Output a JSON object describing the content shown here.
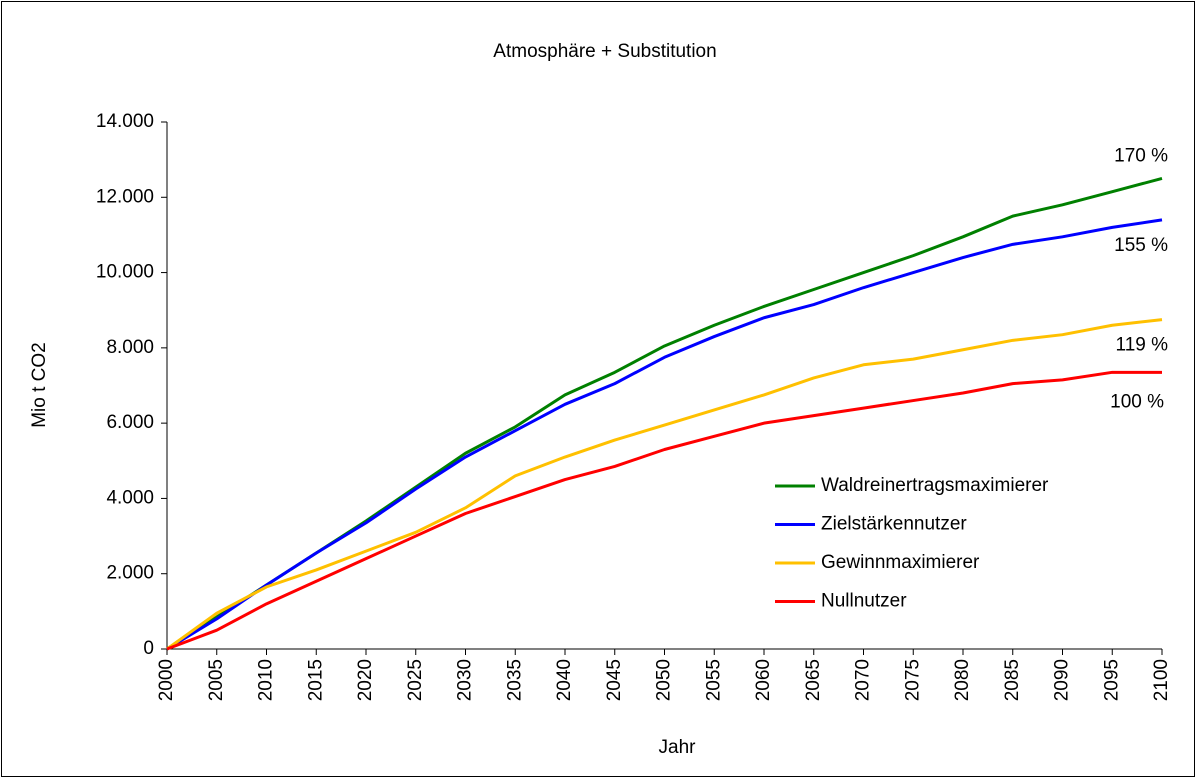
{
  "chart_data": {
    "type": "line",
    "title": "Atmosphäre + Substitution",
    "x_label": "Jahr",
    "y_label": "Mio t CO2",
    "x": [
      2000,
      2005,
      2010,
      2015,
      2020,
      2025,
      2030,
      2035,
      2040,
      2045,
      2050,
      2055,
      2060,
      2065,
      2070,
      2075,
      2080,
      2085,
      2090,
      2095,
      2100
    ],
    "xlim": [
      2000,
      2100
    ],
    "xticks": [
      2000,
      2005,
      2010,
      2015,
      2020,
      2025,
      2030,
      2035,
      2040,
      2045,
      2050,
      2055,
      2060,
      2065,
      2070,
      2075,
      2080,
      2085,
      2090,
      2095,
      2100
    ],
    "ylim": [
      0,
      14000
    ],
    "yticks": [
      0,
      {
        "value": 2000,
        "label": "2.000"
      },
      {
        "value": 4000,
        "label": "4.000"
      },
      {
        "value": 6000,
        "label": "6.000"
      },
      {
        "value": 8000,
        "label": "8.000"
      },
      {
        "value": 10000,
        "label": "10.000"
      },
      {
        "value": 12000,
        "label": "12.000"
      },
      {
        "value": 14000,
        "label": "14.000"
      }
    ],
    "grid": false,
    "legend": "lower right",
    "series": [
      {
        "name": "Waldreinertragsmaximierer",
        "color": "#008000",
        "end_label": "170 %",
        "values": [
          0,
          850,
          1700,
          2550,
          3400,
          4300,
          5200,
          5900,
          6750,
          7350,
          8050,
          8600,
          9100,
          9550,
          10000,
          10450,
          10950,
          11500,
          11800,
          12150,
          12500
        ]
      },
      {
        "name": "Zielstärkennutzer",
        "color": "#0000ff",
        "end_label": "155 %",
        "values": [
          0,
          800,
          1700,
          2550,
          3350,
          4250,
          5100,
          5800,
          6500,
          7050,
          7750,
          8300,
          8800,
          9150,
          9600,
          10000,
          10400,
          10750,
          10950,
          11200,
          11400
        ]
      },
      {
        "name": "Gewinnmaximierer",
        "color": "#ffc000",
        "end_label": "119 %",
        "values": [
          0,
          950,
          1650,
          2100,
          2600,
          3100,
          3750,
          4600,
          5100,
          5550,
          5950,
          6350,
          6750,
          7200,
          7550,
          7700,
          7950,
          8200,
          8350,
          8600,
          8750
        ]
      },
      {
        "name": "Nullnutzer",
        "color": "#ff0000",
        "end_label": "100 %",
        "values": [
          0,
          500,
          1200,
          1800,
          2400,
          3000,
          3600,
          4050,
          4500,
          4850,
          5300,
          5650,
          6000,
          6200,
          6400,
          6600,
          6800,
          7050,
          7150,
          7350,
          7350
        ]
      }
    ]
  }
}
